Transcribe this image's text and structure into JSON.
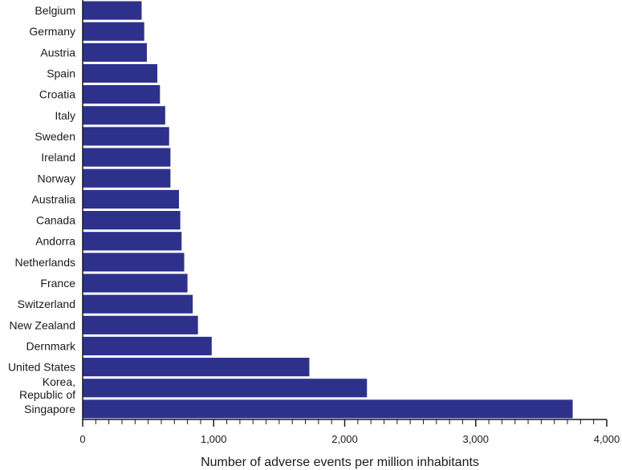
{
  "chart_data": {
    "type": "bar",
    "orientation": "horizontal",
    "categories": [
      [
        "Belgium"
      ],
      [
        "Germany"
      ],
      [
        "Austria"
      ],
      [
        "Spain"
      ],
      [
        "Croatia"
      ],
      [
        "Italy"
      ],
      [
        "Sweden"
      ],
      [
        "Ireland"
      ],
      [
        "Norway"
      ],
      [
        "Australia"
      ],
      [
        "Canada"
      ],
      [
        "Andorra"
      ],
      [
        "Netherlands"
      ],
      [
        "France"
      ],
      [
        "Switzerland"
      ],
      [
        "New Zealand"
      ],
      [
        "Dernmark"
      ],
      [
        "United States"
      ],
      [
        "Korea,",
        "Republic of"
      ],
      [
        "Singapore"
      ]
    ],
    "values": [
      450,
      470,
      490,
      570,
      590,
      630,
      660,
      670,
      670,
      735,
      745,
      755,
      775,
      800,
      840,
      880,
      985,
      1730,
      2170,
      3740
    ],
    "xlabel": "Number of adverse events per million inhabitants",
    "ylabel": "",
    "xlim": [
      0,
      4000
    ],
    "xticks": [
      0,
      1000,
      2000,
      3000,
      4000
    ],
    "xtick_labels": [
      "0",
      "1,000",
      "2,000",
      "3,000",
      "4,000"
    ],
    "minor_tick_step": 100,
    "grid": false,
    "bar_color": "#2e318b"
  }
}
